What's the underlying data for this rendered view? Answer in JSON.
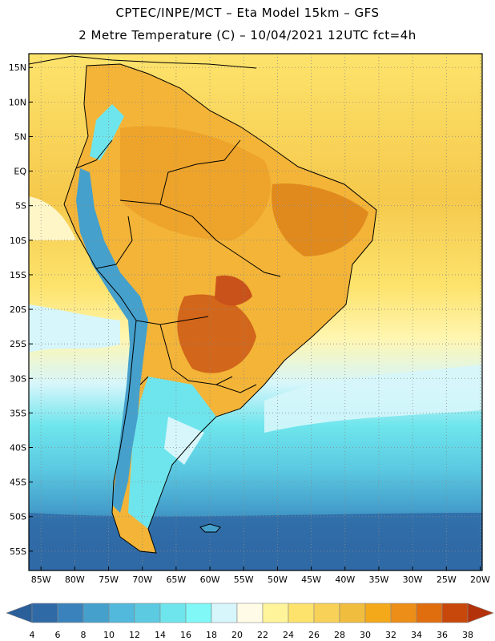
{
  "title": {
    "line1": "CPTEC/INPE/MCT –  Eta Model 15km – GFS",
    "line2": "2 Metre Temperature (C) – 10/04/2021 12UTC fct=4h"
  },
  "map": {
    "lat_labels": [
      "15N",
      "10N",
      "5N",
      "EQ",
      "5S",
      "10S",
      "15S",
      "20S",
      "25S",
      "30S",
      "35S",
      "40S",
      "45S",
      "50S",
      "55S"
    ],
    "lat_values": [
      15,
      10,
      5,
      0,
      -5,
      -10,
      -15,
      -20,
      -25,
      -30,
      -35,
      -40,
      -45,
      -50,
      -55
    ],
    "lon_labels": [
      "85W",
      "80W",
      "75W",
      "70W",
      "65W",
      "60W",
      "55W",
      "50W",
      "45W",
      "40W",
      "35W",
      "30W",
      "25W",
      "20W"
    ],
    "lon_values": [
      -85,
      -80,
      -75,
      -70,
      -65,
      -60,
      -55,
      -50,
      -45,
      -40,
      -35,
      -30,
      -25,
      -20
    ]
  },
  "colorbar": {
    "labels": [
      "4",
      "6",
      "8",
      "10",
      "12",
      "14",
      "16",
      "18",
      "20",
      "22",
      "24",
      "26",
      "28",
      "30",
      "32",
      "34",
      "36",
      "38"
    ],
    "colors": [
      "#2f6aa6",
      "#3a82bb",
      "#45a0cc",
      "#52b8dc",
      "#5ccbe2",
      "#6ee5ec",
      "#7ff8f7",
      "#d6f6fb",
      "#fffbe6",
      "#fff49a",
      "#fde36c",
      "#f8d159",
      "#f1bd3e",
      "#f3a91a",
      "#ed8e18",
      "#e06d0e",
      "#c8470a"
    ],
    "left_arrow_color": "#2b5f99",
    "right_arrow_color": "#b3320a"
  }
}
